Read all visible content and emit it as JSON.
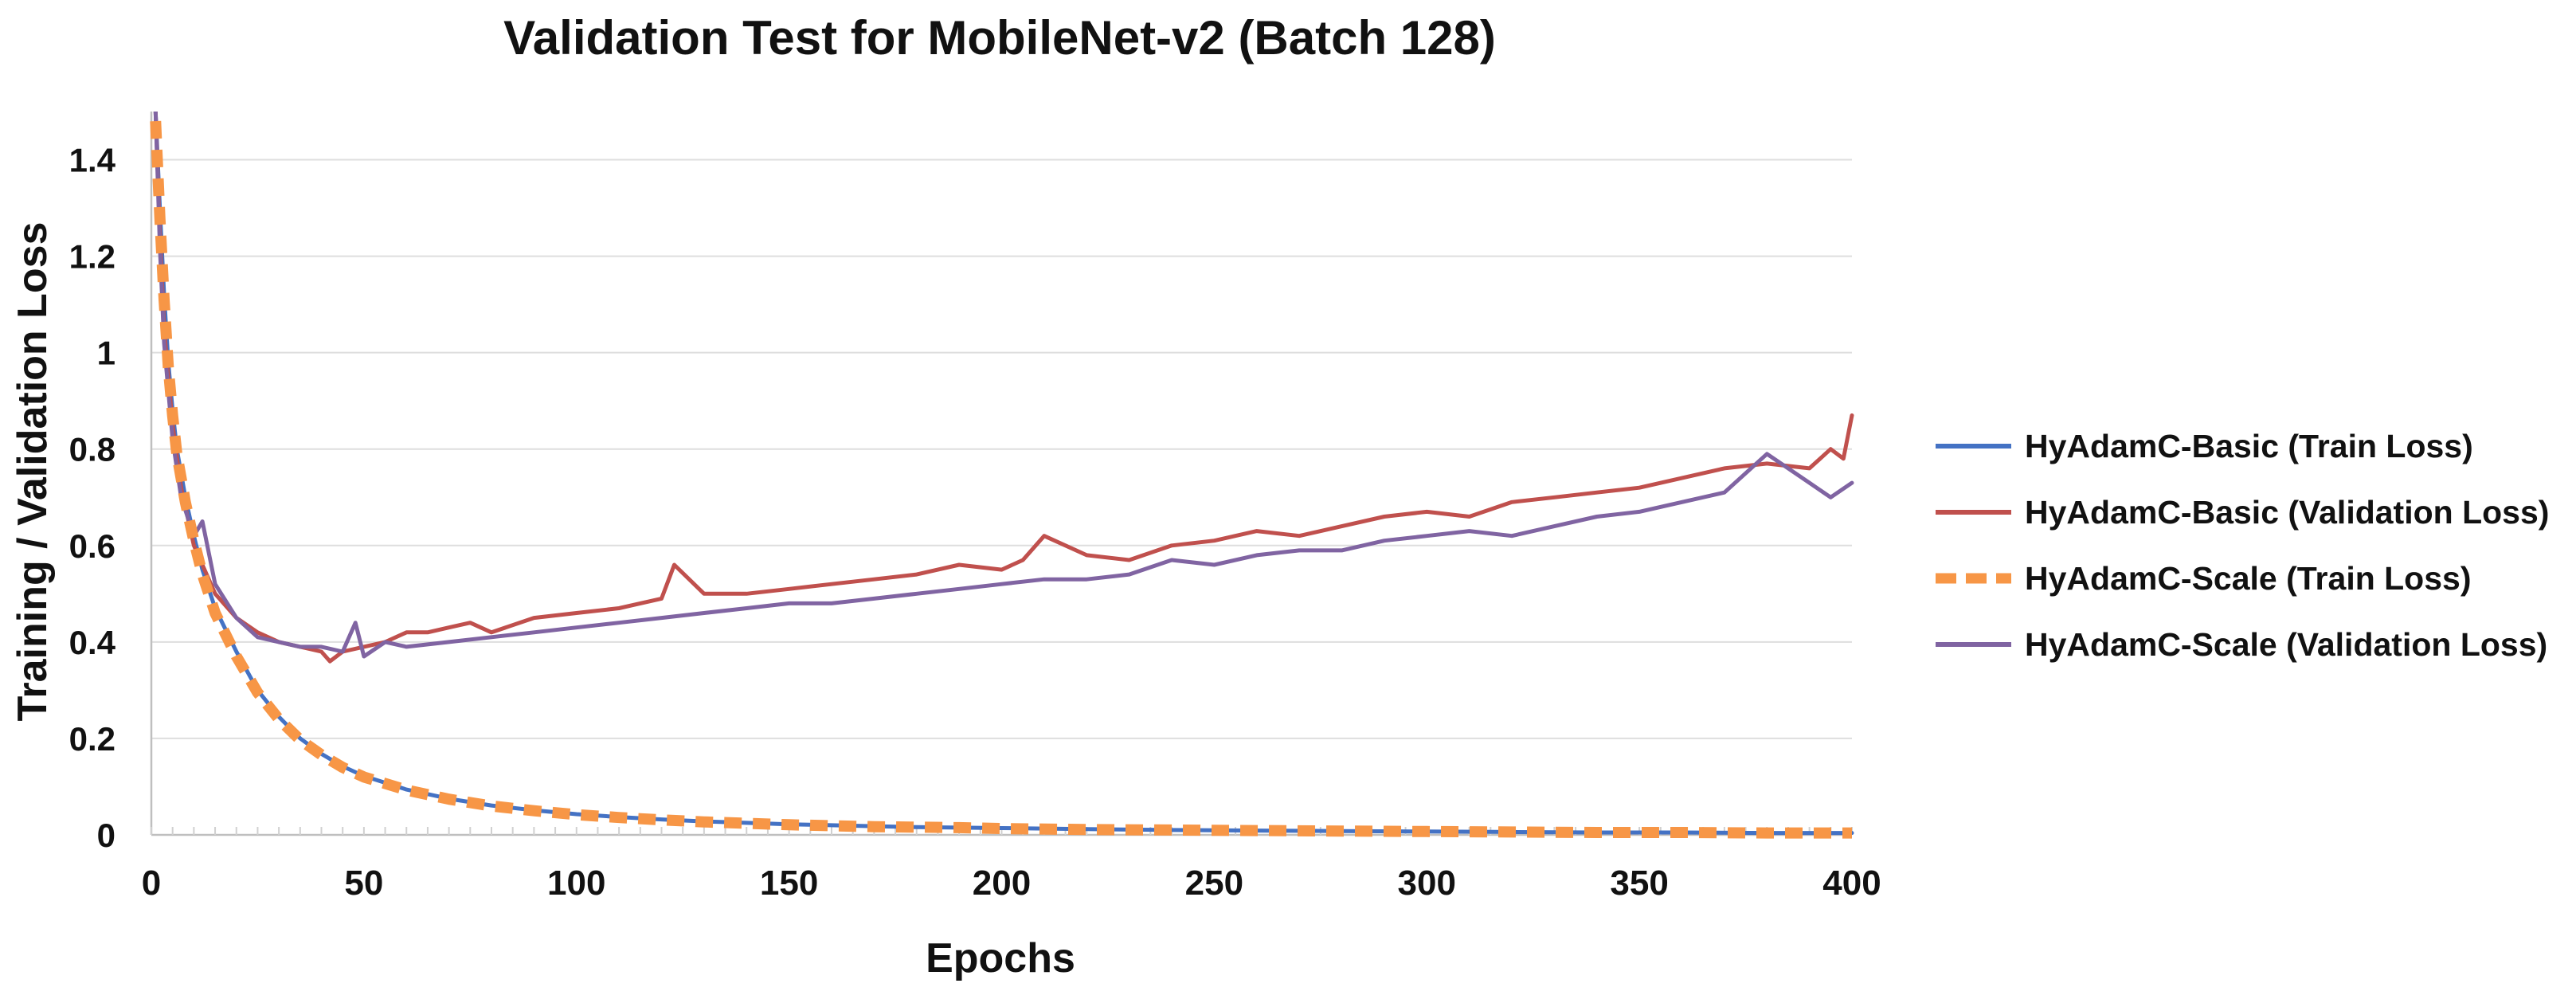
{
  "chart_data": {
    "type": "line",
    "title": "Validation Test for MobileNet-v2 (Batch 128)",
    "xlabel": "Epochs",
    "ylabel": "Training / Validation Loss",
    "xlim": [
      0,
      400
    ],
    "ylim": [
      0,
      1.5
    ],
    "x_ticks": [
      0,
      50,
      100,
      150,
      200,
      250,
      300,
      350,
      400
    ],
    "y_ticks": [
      0,
      0.2,
      0.4,
      0.6,
      0.8,
      1,
      1.2,
      1.4
    ],
    "x_tick_labels": [
      "0",
      "50",
      "100",
      "150",
      "200",
      "250",
      "300",
      "350",
      "400"
    ],
    "y_tick_labels": [
      "0",
      "0.2",
      "0.4",
      "0.6",
      "0.8",
      "1",
      "1.2",
      "1.4"
    ],
    "grid": "horizontal",
    "legend_position": "right",
    "series": [
      {
        "name": "HyAdamC-Basic (Train Loss)",
        "color": "#4472c4",
        "style": "solid",
        "x": [
          1,
          2,
          3,
          4,
          5,
          6,
          8,
          10,
          12,
          15,
          20,
          25,
          30,
          35,
          40,
          45,
          50,
          60,
          70,
          80,
          90,
          100,
          110,
          120,
          130,
          140,
          150,
          160,
          170,
          180,
          190,
          200,
          220,
          240,
          260,
          280,
          300,
          320,
          340,
          360,
          380,
          400
        ],
        "values": [
          1.5,
          1.3,
          1.12,
          0.98,
          0.88,
          0.8,
          0.7,
          0.62,
          0.55,
          0.47,
          0.38,
          0.3,
          0.245,
          0.2,
          0.168,
          0.142,
          0.122,
          0.094,
          0.075,
          0.061,
          0.051,
          0.043,
          0.037,
          0.032,
          0.028,
          0.025,
          0.022,
          0.02,
          0.018,
          0.016,
          0.015,
          0.014,
          0.012,
          0.01,
          0.009,
          0.008,
          0.007,
          0.006,
          0.005,
          0.005,
          0.004,
          0.004
        ]
      },
      {
        "name": "HyAdamC-Basic (Validation Loss)",
        "color": "#c0504d",
        "style": "solid",
        "x": [
          1,
          2,
          3,
          5,
          7,
          10,
          12,
          15,
          20,
          25,
          30,
          35,
          40,
          42,
          45,
          50,
          55,
          60,
          65,
          70,
          75,
          80,
          90,
          100,
          110,
          120,
          123,
          130,
          140,
          150,
          160,
          170,
          180,
          190,
          200,
          205,
          210,
          220,
          230,
          240,
          250,
          260,
          270,
          280,
          290,
          300,
          310,
          320,
          330,
          340,
          350,
          360,
          370,
          380,
          390,
          395,
          398,
          400
        ],
        "values": [
          1.5,
          1.25,
          1.05,
          0.85,
          0.72,
          0.6,
          0.56,
          0.5,
          0.45,
          0.42,
          0.4,
          0.39,
          0.38,
          0.36,
          0.38,
          0.39,
          0.4,
          0.42,
          0.42,
          0.43,
          0.44,
          0.42,
          0.45,
          0.46,
          0.47,
          0.49,
          0.56,
          0.5,
          0.5,
          0.51,
          0.52,
          0.53,
          0.54,
          0.56,
          0.55,
          0.57,
          0.62,
          0.58,
          0.57,
          0.6,
          0.61,
          0.63,
          0.62,
          0.64,
          0.66,
          0.67,
          0.66,
          0.69,
          0.7,
          0.71,
          0.72,
          0.74,
          0.76,
          0.77,
          0.76,
          0.8,
          0.78,
          0.87
        ]
      },
      {
        "name": "HyAdamC-Scale (Train Loss)",
        "color": "#f79646",
        "style": "dashed",
        "x": [
          1,
          2,
          3,
          4,
          5,
          6,
          8,
          10,
          12,
          15,
          20,
          25,
          30,
          35,
          40,
          45,
          50,
          60,
          70,
          80,
          90,
          100,
          110,
          120,
          130,
          140,
          150,
          160,
          170,
          180,
          190,
          200,
          220,
          240,
          260,
          280,
          300,
          320,
          340,
          360,
          380,
          400
        ],
        "values": [
          1.48,
          1.28,
          1.11,
          0.97,
          0.87,
          0.79,
          0.69,
          0.61,
          0.54,
          0.46,
          0.37,
          0.295,
          0.24,
          0.197,
          0.166,
          0.14,
          0.12,
          0.093,
          0.074,
          0.06,
          0.05,
          0.042,
          0.036,
          0.031,
          0.027,
          0.024,
          0.021,
          0.019,
          0.017,
          0.016,
          0.015,
          0.013,
          0.011,
          0.01,
          0.009,
          0.008,
          0.007,
          0.006,
          0.005,
          0.005,
          0.004,
          0.004
        ]
      },
      {
        "name": "HyAdamC-Scale (Validation Loss)",
        "color": "#8064a2",
        "style": "solid",
        "x": [
          1,
          2,
          3,
          5,
          7,
          10,
          12,
          15,
          20,
          25,
          30,
          35,
          40,
          45,
          48,
          50,
          55,
          60,
          70,
          80,
          90,
          100,
          110,
          120,
          130,
          140,
          150,
          160,
          170,
          180,
          190,
          200,
          210,
          220,
          230,
          240,
          250,
          260,
          270,
          280,
          290,
          300,
          310,
          320,
          330,
          340,
          350,
          360,
          370,
          380,
          390,
          395,
          400
        ],
        "values": [
          1.5,
          1.22,
          1.02,
          0.82,
          0.7,
          0.62,
          0.65,
          0.52,
          0.45,
          0.41,
          0.4,
          0.39,
          0.39,
          0.38,
          0.44,
          0.37,
          0.4,
          0.39,
          0.4,
          0.41,
          0.42,
          0.43,
          0.44,
          0.45,
          0.46,
          0.47,
          0.48,
          0.48,
          0.49,
          0.5,
          0.51,
          0.52,
          0.53,
          0.53,
          0.54,
          0.57,
          0.56,
          0.58,
          0.59,
          0.59,
          0.61,
          0.62,
          0.63,
          0.62,
          0.64,
          0.66,
          0.67,
          0.69,
          0.71,
          0.79,
          0.73,
          0.7,
          0.73
        ]
      }
    ]
  }
}
